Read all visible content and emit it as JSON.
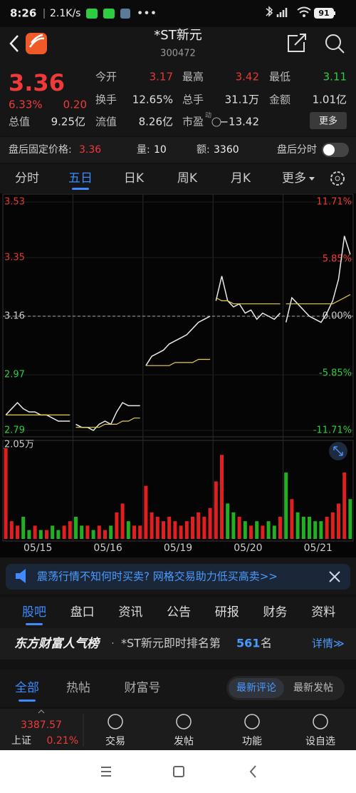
{
  "status_bar": {
    "time": "8:26",
    "speed": "2.1K/s",
    "battery": "91"
  },
  "header": {
    "title": "*ST新元",
    "code": "300472"
  },
  "quote": {
    "price": "3.36",
    "change_pct": "6.33%",
    "change": "0.20",
    "more": "更多",
    "fields": [
      {
        "label": "今开",
        "value": "3.17",
        "color": "#e53935"
      },
      {
        "label": "最高",
        "value": "3.42",
        "color": "#e53935"
      },
      {
        "label": "最低",
        "value": "3.11",
        "color": "#2ecc40"
      },
      {
        "label": "换手",
        "value": "12.65%",
        "color": "#e0e0e0"
      },
      {
        "label": "总手",
        "value": "31.1万",
        "color": "#e0e0e0"
      },
      {
        "label": "金额",
        "value": "1.01亿",
        "color": "#e0e0e0"
      },
      {
        "label": "总值",
        "value": "9.25亿",
        "color": "#e0e0e0"
      },
      {
        "label": "流值",
        "value": "8.26亿",
        "color": "#e0e0e0"
      },
      {
        "label": "市盈",
        "value": "−13.42",
        "color": "#e0e0e0",
        "badge": "动"
      }
    ]
  },
  "after_hours": {
    "price_label": "盘后固定价格:",
    "price": "3.36",
    "volume_label": "量:",
    "volume": "10",
    "amount_label": "额:",
    "amount": "3360",
    "toggle_label": "盘后分时"
  },
  "chart_tabs": {
    "items": [
      "分时",
      "五日",
      "日K",
      "周K",
      "月K",
      "更多"
    ],
    "active": 1
  },
  "chart_data": [
    {
      "type": "line",
      "categories": [
        "05/15",
        "05/16",
        "05/19",
        "05/20",
        "05/21"
      ],
      "ylim": [
        2.79,
        3.53
      ],
      "yticks": [
        3.53,
        3.35,
        3.16,
        2.97,
        2.79
      ],
      "ytick_colors": [
        "#e53935",
        "#e53935",
        "#cccccc",
        "#2ecc40",
        "#2ecc40"
      ],
      "y2lim": [
        -11.71,
        11.71
      ],
      "y2ticks": [
        {
          "value": 11.71,
          "label": "11.71%"
        },
        {
          "value": 5.85,
          "label": "5.85%"
        },
        {
          "value": 0,
          "label": "0.00%"
        },
        {
          "value": -5.85,
          "label": "-5.85%"
        },
        {
          "value": -11.71,
          "label": "-11.71%"
        }
      ],
      "prev_close": 3.16,
      "grid": true,
      "series": [
        {
          "color": "#e8e8e8",
          "values": [
            [
              2.84,
              2.86,
              2.88,
              2.86,
              2.85,
              2.85,
              2.84,
              2.84,
              2.83,
              2.82,
              2.82,
              2.82
            ],
            [
              2.81,
              2.8,
              2.8,
              2.79,
              2.81,
              2.82,
              2.81,
              2.85,
              2.88,
              2.87,
              2.87,
              2.87
            ],
            [
              3.0,
              3.03,
              3.04,
              3.05,
              3.07,
              3.08,
              3.09,
              3.1,
              3.12,
              3.14,
              3.15,
              3.16
            ],
            [
              3.21,
              3.29,
              3.21,
              3.19,
              3.2,
              3.17,
              3.18,
              3.15,
              3.17,
              3.16,
              3.15,
              3.17
            ],
            [
              3.14,
              3.22,
              3.2,
              3.18,
              3.16,
              3.15,
              3.14,
              3.17,
              3.21,
              3.28,
              3.42,
              3.36
            ]
          ]
        },
        {
          "color": "#e6d04a",
          "values": [
            [
              2.84,
              2.84,
              2.84,
              2.84,
              2.84,
              2.84,
              2.84,
              2.84,
              2.84,
              2.84,
              2.84,
              2.84
            ],
            [
              2.8,
              2.8,
              2.8,
              2.8,
              2.8,
              2.81,
              2.81,
              2.81,
              2.82,
              2.82,
              2.83,
              2.83
            ],
            [
              3.0,
              3.0,
              3.0,
              3.0,
              3.0,
              3.01,
              3.01,
              3.01,
              3.01,
              3.02,
              3.02,
              3.02
            ],
            [
              3.22,
              3.21,
              3.21,
              3.2,
              3.2,
              3.2,
              3.2,
              3.2,
              3.2,
              3.2,
              3.2,
              3.2
            ],
            [
              3.2,
              3.2,
              3.2,
              3.2,
              3.2,
              3.2,
              3.2,
              3.2,
              3.2,
              3.21,
              3.22,
              3.23
            ]
          ]
        }
      ]
    },
    {
      "type": "bar",
      "ylim": [
        0,
        2.05
      ],
      "yticks": [
        {
          "value": 2.05,
          "label": "2.05万"
        }
      ],
      "up_color": "#e02020",
      "down_color": "#22b022",
      "values": [
        [
          2.05,
          0.4,
          0.3,
          0.5,
          0.2,
          0.3,
          0.2,
          0.2,
          0.3,
          0.2,
          0.3,
          0.4
        ],
        [
          0.5,
          0.3,
          0.3,
          0.2,
          0.3,
          0.2,
          0.3,
          0.6,
          0.8,
          0.4,
          0.3,
          0.3
        ],
        [
          1.2,
          0.6,
          0.5,
          0.4,
          0.5,
          0.4,
          0.3,
          0.4,
          0.5,
          0.6,
          0.5,
          0.7
        ],
        [
          1.3,
          1.9,
          0.8,
          0.6,
          0.5,
          0.4,
          0.3,
          0.4,
          0.3,
          0.4,
          0.3,
          0.5
        ],
        [
          1.5,
          0.9,
          0.6,
          0.5,
          0.5,
          0.4,
          0.4,
          0.5,
          0.6,
          0.8,
          1.5,
          0.9
        ]
      ]
    }
  ],
  "banner": {
    "text": "震荡行情不知何时买卖? 网格交易助力低买高卖>>"
  },
  "info_tabs": {
    "items": [
      "股吧",
      "盘口",
      "资讯",
      "公告",
      "研报",
      "财务",
      "资料"
    ],
    "active": 0
  },
  "ranking": {
    "title": "东方财富人气榜",
    "dot": "·",
    "text": "*ST新元即时排名第",
    "rank": "561",
    "unit": "名",
    "link": "详情≫"
  },
  "feed_tabs": {
    "items": [
      "全部",
      "热帖",
      "财富号"
    ],
    "active": 0,
    "sort": [
      "最新评论",
      "最新发帖"
    ],
    "sort_active": 0
  },
  "bottom_nav": {
    "index_value": "3387.57",
    "index_name": "上证",
    "index_change": "0.21%",
    "items": [
      "交易",
      "发帖",
      "功能",
      "设自选"
    ]
  }
}
